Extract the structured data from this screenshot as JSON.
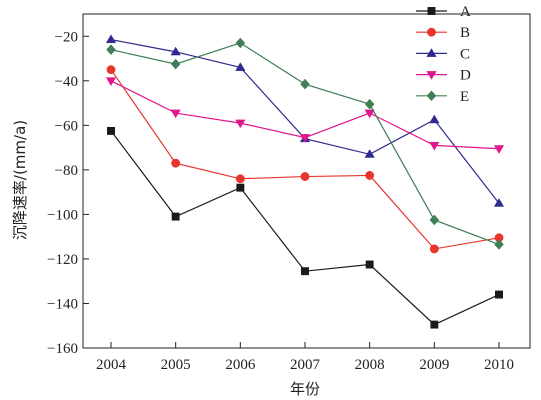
{
  "chart_data": {
    "type": "line",
    "title": "",
    "xlabel": "年份",
    "ylabel": "沉降速率/(mm/a)",
    "x": [
      "2004",
      "2005",
      "2006",
      "2007",
      "2008",
      "2009",
      "2010"
    ],
    "ylim": [
      -160,
      -10
    ],
    "yticks": [
      -160,
      -140,
      -120,
      -100,
      -80,
      -60,
      -40,
      -20
    ],
    "grid": false,
    "legend_position": "top-right",
    "series": [
      {
        "name": "A",
        "color": "#1a1a1a",
        "marker": "square",
        "values": [
          -62.5,
          -101,
          -88,
          -125.5,
          -122.5,
          -149.5,
          -136
        ]
      },
      {
        "name": "B",
        "color": "#e8352e",
        "marker": "circle",
        "values": [
          -35,
          -77,
          -84,
          -83,
          -82.5,
          -115.5,
          -110.5
        ]
      },
      {
        "name": "C",
        "color": "#2f2a8f",
        "marker": "triangle-up",
        "values": [
          -21.5,
          -27,
          -34,
          -66,
          -73,
          -57.5,
          -95
        ]
      },
      {
        "name": "D",
        "color": "#e2168c",
        "marker": "triangle-down",
        "values": [
          -40,
          -54.5,
          -59,
          -65.5,
          -54.5,
          -69,
          -70.5
        ]
      },
      {
        "name": "E",
        "color": "#3f7f56",
        "marker": "diamond",
        "values": [
          -26,
          -32.5,
          -23,
          -41.5,
          -50.5,
          -102.5,
          -113.5
        ]
      }
    ]
  }
}
